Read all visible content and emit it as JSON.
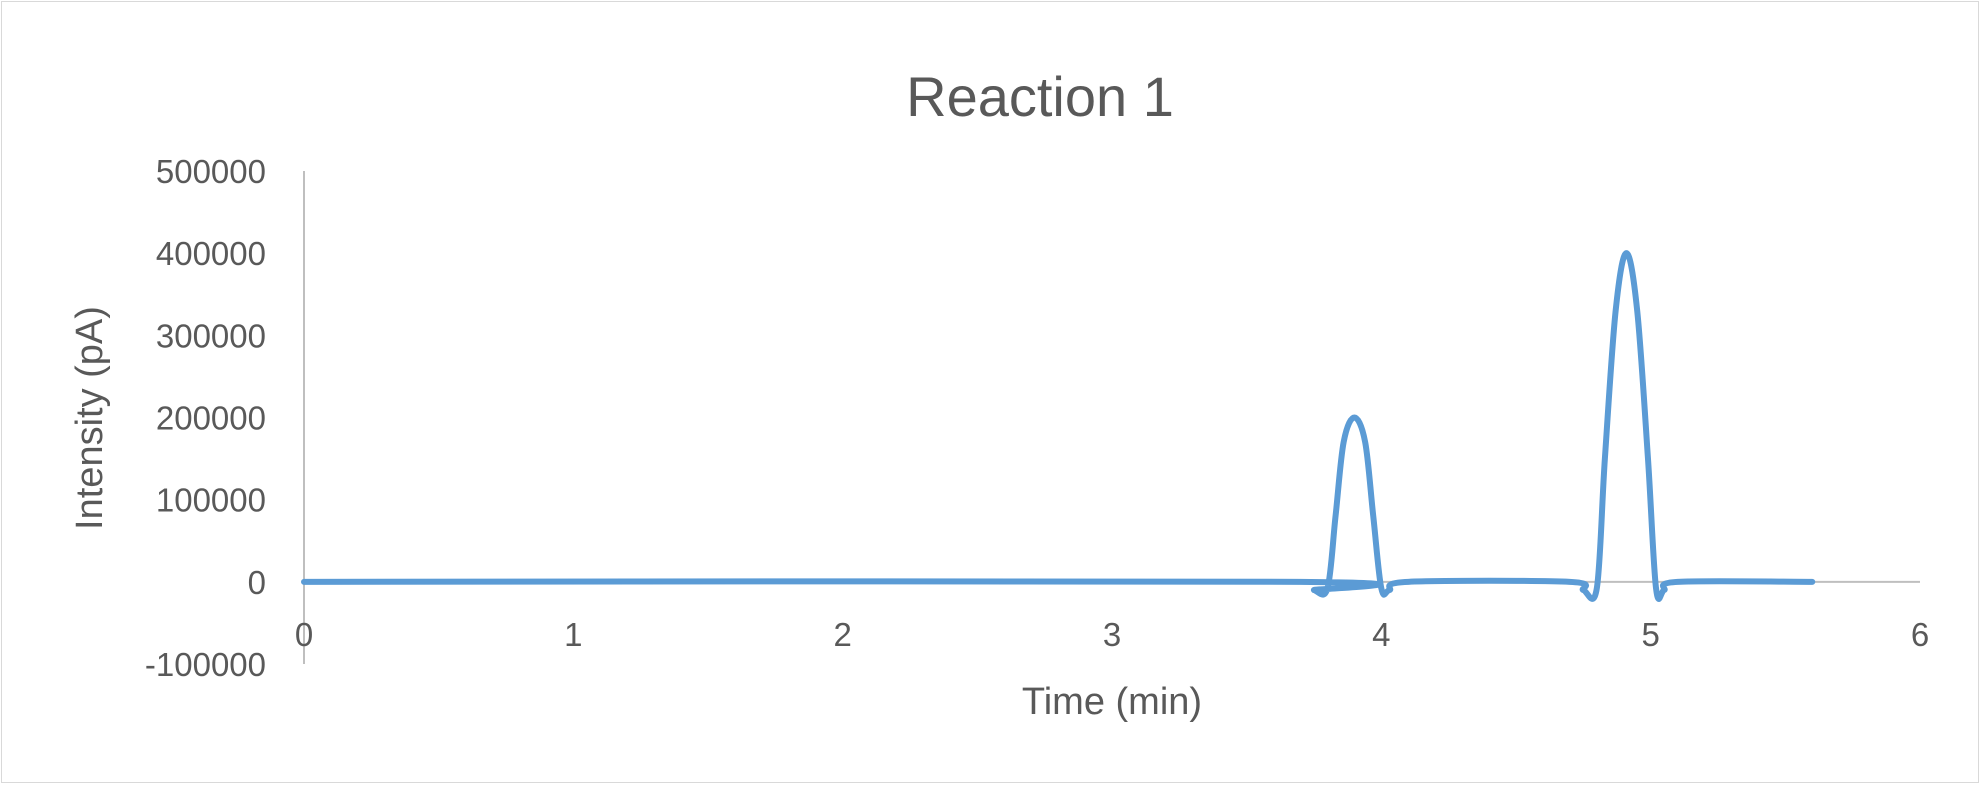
{
  "chart_data": {
    "type": "line",
    "title": "Reaction 1",
    "xlabel": "Time (min)",
    "ylabel": "Intensity (pA)",
    "xlim": [
      0,
      6
    ],
    "ylim": [
      -100000,
      500000
    ],
    "x_ticks": [
      0,
      1,
      2,
      3,
      4,
      5,
      6
    ],
    "y_ticks": [
      -100000,
      0,
      100000,
      200000,
      300000,
      400000,
      500000
    ],
    "grid": false,
    "legend": "none",
    "series_color": "#5B9BD5",
    "series": [
      {
        "x": [
          0,
          3.7,
          3.75,
          3.8,
          3.83,
          3.86,
          3.9,
          3.94,
          3.97,
          4.0,
          4.03,
          4.1,
          4.7,
          4.75,
          4.8,
          4.83,
          4.87,
          4.91,
          4.95,
          4.99,
          5.02,
          5.05,
          5.1,
          5.6
        ],
        "y": [
          0,
          0,
          -10000,
          -8000,
          80000,
          170000,
          200000,
          170000,
          80000,
          -8000,
          -10000,
          0,
          0,
          -10000,
          -8000,
          150000,
          330000,
          400000,
          330000,
          150000,
          -8000,
          -10000,
          0,
          0
        ]
      }
    ]
  }
}
